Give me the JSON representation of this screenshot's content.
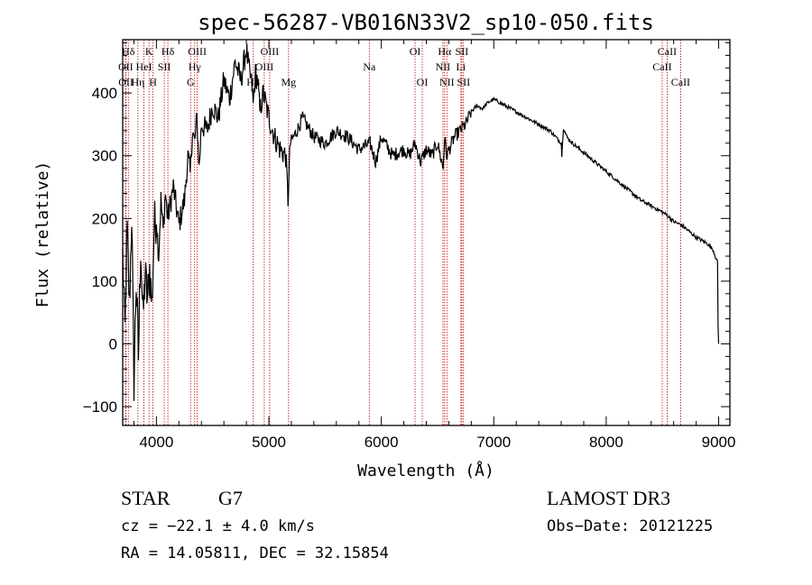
{
  "chart_data": {
    "type": "line",
    "title": "spec-56287-VB016N33V2_sp10-050.fits",
    "xlabel": "Wavelength (Å)",
    "ylabel": "Flux (relative)",
    "xlim": [
      3700,
      9100
    ],
    "ylim": [
      -130,
      485
    ],
    "xticks": [
      4000,
      5000,
      6000,
      7000,
      8000,
      9000
    ],
    "yticks": [
      -100,
      0,
      100,
      200,
      300,
      400
    ],
    "series": [
      {
        "name": "flux",
        "x": [
          3700,
          3720,
          3740,
          3760,
          3780,
          3800,
          3820,
          3840,
          3860,
          3880,
          3900,
          3920,
          3940,
          3960,
          3980,
          4000,
          4020,
          4040,
          4060,
          4080,
          4100,
          4150,
          4200,
          4250,
          4280,
          4300,
          4320,
          4340,
          4360,
          4380,
          4400,
          4450,
          4500,
          4550,
          4600,
          4650,
          4700,
          4750,
          4800,
          4820,
          4850,
          4860,
          4880,
          4900,
          4920,
          4950,
          5000,
          5050,
          5100,
          5150,
          5170,
          5190,
          5250,
          5300,
          5400,
          5500,
          5600,
          5700,
          5800,
          5900,
          5950,
          6000,
          6100,
          6200,
          6250,
          6300,
          6350,
          6400,
          6450,
          6500,
          6550,
          6563,
          6580,
          6650,
          6700,
          6750,
          6800,
          6850,
          6900,
          6950,
          7000,
          7050,
          7100,
          7200,
          7300,
          7400,
          7500,
          7550,
          7600,
          7605,
          7620,
          7650,
          7700,
          7800,
          7900,
          8000,
          8100,
          8200,
          8300,
          8400,
          8500,
          8542,
          8600,
          8662,
          8700,
          8800,
          8900,
          8950,
          8990,
          8995,
          9000
        ],
        "values": [
          140,
          20,
          180,
          60,
          210,
          -60,
          100,
          -20,
          160,
          40,
          110,
          70,
          120,
          60,
          190,
          200,
          140,
          230,
          180,
          240,
          200,
          250,
          190,
          230,
          300,
          270,
          340,
          320,
          360,
          280,
          350,
          340,
          380,
          360,
          420,
          390,
          450,
          420,
          470,
          440,
          410,
          380,
          430,
          420,
          370,
          400,
          360,
          330,
          310,
          300,
          230,
          320,
          340,
          360,
          330,
          320,
          340,
          330,
          310,
          320,
          290,
          330,
          300,
          310,
          300,
          320,
          290,
          310,
          300,
          320,
          280,
          330,
          300,
          330,
          340,
          350,
          370,
          380,
          375,
          385,
          390,
          385,
          380,
          370,
          360,
          350,
          340,
          330,
          320,
          300,
          345,
          330,
          320,
          305,
          290,
          275,
          260,
          245,
          230,
          220,
          210,
          205,
          195,
          190,
          185,
          170,
          160,
          150,
          130,
          30,
          0
        ]
      }
    ],
    "line_ids": [
      {
        "label": "Hδ",
        "x": 3750,
        "row": 1
      },
      {
        "label": "OII",
        "x": 3727,
        "row": 2
      },
      {
        "label": "OII",
        "x": 3729,
        "row": 3
      },
      {
        "label": "K",
        "x": 3934,
        "row": 1
      },
      {
        "label": "HeI",
        "x": 3889,
        "row": 2
      },
      {
        "label": "Hη",
        "x": 3835,
        "row": 3
      },
      {
        "label": "H",
        "x": 3969,
        "row": 3
      },
      {
        "label": "Hδ",
        "x": 4102,
        "row": 1
      },
      {
        "label": "SII",
        "x": 4070,
        "row": 2
      },
      {
        "label": "OIII",
        "x": 4363,
        "row": 1
      },
      {
        "label": "Hγ",
        "x": 4340,
        "row": 2
      },
      {
        "label": "G",
        "x": 4304,
        "row": 3
      },
      {
        "label": "OIII",
        "x": 5007,
        "row": 1
      },
      {
        "label": "OIII",
        "x": 4959,
        "row": 2
      },
      {
        "label": "Hβ",
        "x": 4861,
        "row": 3
      },
      {
        "label": "Mg",
        "x": 5175,
        "row": 3
      },
      {
        "label": "Na",
        "x": 5893,
        "row": 2
      },
      {
        "label": "OI",
        "x": 6300,
        "row": 1
      },
      {
        "label": "OI",
        "x": 6364,
        "row": 3
      },
      {
        "label": "Hα",
        "x": 6563,
        "row": 1
      },
      {
        "label": "SII",
        "x": 6716,
        "row": 1
      },
      {
        "label": "NII",
        "x": 6548,
        "row": 2
      },
      {
        "label": "Li",
        "x": 6708,
        "row": 2
      },
      {
        "label": "NII",
        "x": 6583,
        "row": 3
      },
      {
        "label": "SII",
        "x": 6731,
        "row": 3
      },
      {
        "label": "CaII",
        "x": 8542,
        "row": 1
      },
      {
        "label": "CaII",
        "x": 8498,
        "row": 2
      },
      {
        "label": "CaII",
        "x": 8662,
        "row": 3
      }
    ]
  },
  "info": {
    "class": "STAR",
    "subclass": "G7",
    "survey": "LAMOST DR3",
    "cz": "cz = −22.1 ± 4.0 km/s",
    "obs_date": "Obs−Date: 20121225",
    "coords": "RA =  14.05811, DEC =  32.15854"
  },
  "colors": {
    "spectrum": "#000000",
    "line_markers": "#c00000",
    "axes": "#000000",
    "background": "#ffffff"
  }
}
